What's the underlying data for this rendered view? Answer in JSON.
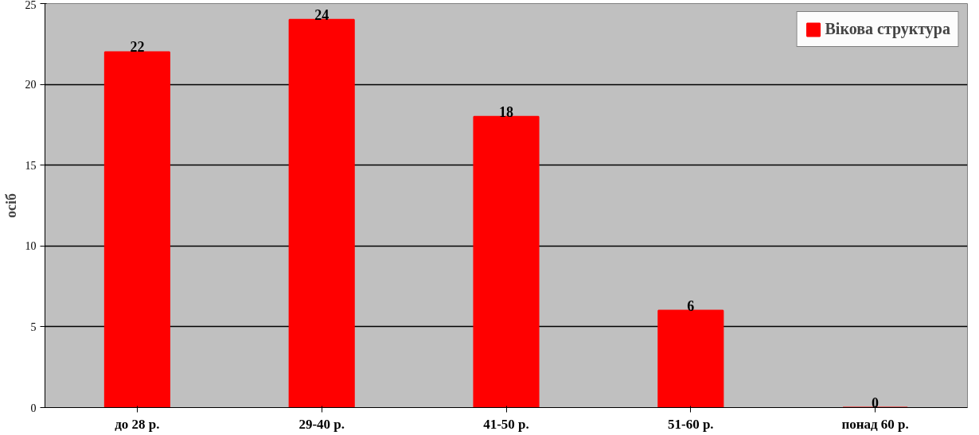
{
  "chart_data": {
    "type": "bar",
    "ylabel": "осіб",
    "categories": [
      "до 28 р.",
      "29-40 р.",
      "41-50 р.",
      "51-60 р.",
      "понад 60 р."
    ],
    "series": [
      {
        "name": "Вікова структура",
        "color": "#ff0000",
        "values": [
          22,
          24,
          18,
          6,
          0
        ]
      }
    ],
    "ylim": [
      0,
      25
    ],
    "yticks": [
      0,
      5,
      10,
      15,
      20,
      25
    ],
    "grid": "y",
    "legend": "top right",
    "data_labels": true
  }
}
